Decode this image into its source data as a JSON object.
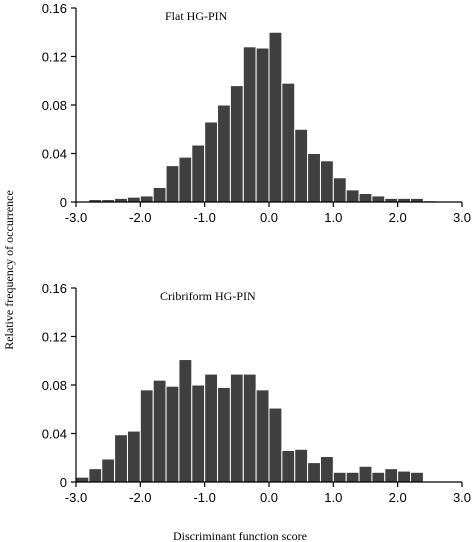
{
  "figure": {
    "ylabel": "Relative frequency of occurrence",
    "xlabel": "Discriminant function score"
  },
  "chart_data": [
    {
      "type": "bar",
      "title": "Flat HG-PIN",
      "bin_start": -3.0,
      "bin_width": 0.2,
      "values": [
        0.0,
        0.002,
        0.002,
        0.003,
        0.004,
        0.005,
        0.012,
        0.03,
        0.037,
        0.047,
        0.066,
        0.08,
        0.096,
        0.128,
        0.127,
        0.14,
        0.098,
        0.06,
        0.04,
        0.034,
        0.02,
        0.01,
        0.007,
        0.005,
        0.003,
        0.003,
        0.003,
        0.001,
        0.0,
        0.0
      ],
      "xlim": [
        -3.0,
        3.0
      ],
      "ylim": [
        0,
        0.16
      ],
      "xticks": [
        -3.0,
        -2.0,
        -1.0,
        0.0,
        1.0,
        2.0,
        3.0
      ],
      "xtick_labels": [
        "-3.0",
        "-2.0",
        "-1.0",
        "0.0",
        "1.0",
        "2.0",
        "3.0"
      ],
      "yticks": [
        0,
        0.04,
        0.08,
        0.12,
        0.16
      ],
      "ytick_labels": [
        "0",
        "0.04",
        "0.08",
        "0.12",
        "0.16"
      ],
      "color": "#404040"
    },
    {
      "type": "bar",
      "title": "Cribriform HG-PIN",
      "bin_start": -3.0,
      "bin_width": 0.2,
      "values": [
        0.004,
        0.011,
        0.019,
        0.039,
        0.042,
        0.076,
        0.084,
        0.079,
        0.101,
        0.08,
        0.089,
        0.078,
        0.089,
        0.089,
        0.076,
        0.061,
        0.026,
        0.027,
        0.016,
        0.021,
        0.008,
        0.008,
        0.013,
        0.008,
        0.011,
        0.009,
        0.008,
        0.0,
        0.0,
        0.0
      ],
      "xlim": [
        -3.0,
        3.0
      ],
      "ylim": [
        0,
        0.16
      ],
      "xticks": [
        -3.0,
        -2.0,
        -1.0,
        0.0,
        1.0,
        2.0,
        3.0
      ],
      "xtick_labels": [
        "-3.0",
        "-2.0",
        "-1.0",
        "0.0",
        "1.0",
        "2.0",
        "3.0"
      ],
      "yticks": [
        0,
        0.04,
        0.08,
        0.12,
        0.16
      ],
      "ytick_labels": [
        "0",
        "0.04",
        "0.08",
        "0.12",
        "0.16"
      ],
      "color": "#404040"
    }
  ]
}
